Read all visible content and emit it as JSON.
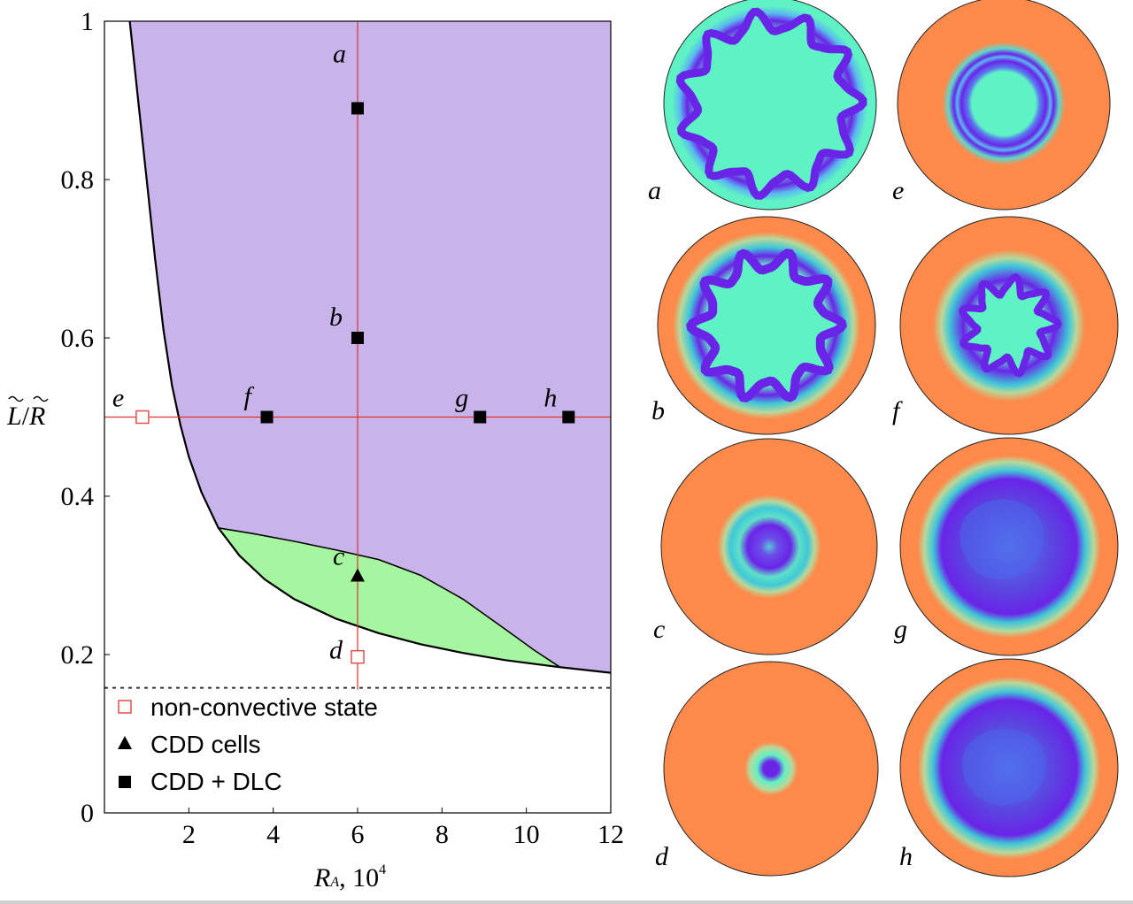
{
  "chart_data": [
    {
      "type": "scatter",
      "title": "",
      "xlabel": "R_A, 10^4",
      "xlabel_main": "R",
      "xlabel_sub": "A",
      "xlabel_rest": ", 10",
      "xlabel_exp": "4",
      "ylabel": "L̃/R̃",
      "ylabel_num": "L",
      "ylabel_den": "R",
      "xlim": [
        0,
        12
      ],
      "ylim": [
        0,
        1
      ],
      "xticks": [
        2,
        4,
        6,
        8,
        10,
        12
      ],
      "xtick_labels": [
        "2",
        "4",
        "6",
        "8",
        "10",
        "12"
      ],
      "yticks": [
        0,
        0.2,
        0.4,
        0.6,
        0.8,
        1
      ],
      "ytick_labels": [
        "0",
        "0.2",
        "0.4",
        "0.6",
        "0.8",
        "1"
      ],
      "threshold_curve": [
        [
          0.6,
          1.0
        ],
        [
          0.8,
          0.9
        ],
        [
          1.0,
          0.8
        ],
        [
          1.2,
          0.7
        ],
        [
          1.4,
          0.61
        ],
        [
          1.6,
          0.54
        ],
        [
          1.8,
          0.49
        ],
        [
          2.0,
          0.45
        ],
        [
          2.3,
          0.405
        ],
        [
          2.7,
          0.36
        ],
        [
          3.2,
          0.325
        ],
        [
          3.8,
          0.295
        ],
        [
          4.5,
          0.27
        ],
        [
          5.5,
          0.245
        ],
        [
          6.5,
          0.227
        ],
        [
          7.5,
          0.213
        ],
        [
          8.5,
          0.202
        ],
        [
          9.5,
          0.193
        ],
        [
          10.8,
          0.184
        ],
        [
          12.0,
          0.177
        ]
      ],
      "cdd_region_upper": [
        [
          2.7,
          0.36
        ],
        [
          3.5,
          0.353
        ],
        [
          4.5,
          0.343
        ],
        [
          5.5,
          0.332
        ],
        [
          6.5,
          0.32
        ],
        [
          7.5,
          0.3
        ],
        [
          8.5,
          0.27
        ],
        [
          9.5,
          0.232
        ],
        [
          10.2,
          0.205
        ],
        [
          10.8,
          0.184
        ]
      ],
      "asymptote_y": 0.158,
      "guide_lines": {
        "vertical_x": 6,
        "horizontal_y": 0.5
      },
      "series": [
        {
          "name": "non-convective state",
          "marker": "open-square",
          "color": "#e05050",
          "points": [
            {
              "label": "e",
              "x": 0.9,
              "y": 0.5
            },
            {
              "label": "d",
              "x": 6.0,
              "y": 0.197
            }
          ]
        },
        {
          "name": "CDD cells",
          "marker": "triangle",
          "color": "#000000",
          "points": [
            {
              "label": "c",
              "x": 6.0,
              "y": 0.3
            }
          ]
        },
        {
          "name": "CDD + DLC",
          "marker": "square",
          "color": "#000000",
          "points": [
            {
              "label": "a",
              "x": 6.0,
              "y": 0.89
            },
            {
              "label": "b",
              "x": 6.0,
              "y": 0.6
            },
            {
              "label": "f",
              "x": 3.85,
              "y": 0.5
            },
            {
              "label": "g",
              "x": 8.9,
              "y": 0.5
            },
            {
              "label": "h",
              "x": 11.0,
              "y": 0.5
            }
          ]
        }
      ],
      "region_colors": {
        "convective": "#c8b4ea",
        "cdd": "#a6f5a0"
      },
      "legend_position": "bottom-left"
    }
  ],
  "snapshots": [
    {
      "label": "a",
      "pattern": "fingers"
    },
    {
      "label": "e",
      "pattern": "ring"
    },
    {
      "label": "b",
      "pattern": "fingers"
    },
    {
      "label": "f",
      "pattern": "fingers"
    },
    {
      "label": "c",
      "pattern": "ring"
    },
    {
      "label": "g",
      "pattern": "blob"
    },
    {
      "label": "d",
      "pattern": "dot"
    },
    {
      "label": "h",
      "pattern": "blob"
    }
  ],
  "colors": {
    "orange": "#fd8a4b",
    "cyan": "#5ff2c4",
    "purple": "#6a24e8",
    "blue": "#5a46e0",
    "red_line": "#e03030"
  }
}
